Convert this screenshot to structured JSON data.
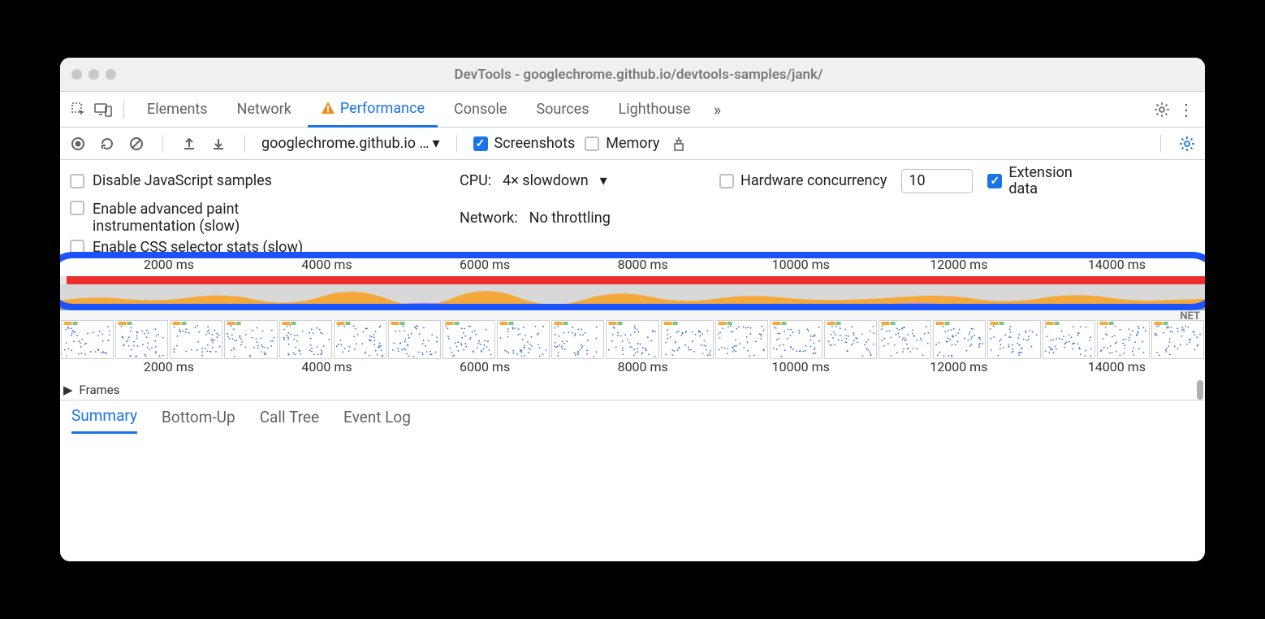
{
  "window": {
    "title": "DevTools - googlechrome.github.io/devtools-samples/jank/"
  },
  "tabs": {
    "elements": "Elements",
    "network": "Network",
    "performance": "Performance",
    "console": "Console",
    "sources": "Sources",
    "lighthouse": "Lighthouse"
  },
  "toolbar": {
    "url": "googlechrome.github.io …",
    "screenshots": "Screenshots",
    "memory": "Memory"
  },
  "settings": {
    "disable_js": "Disable JavaScript samples",
    "adv_paint_l1": "Enable advanced paint",
    "adv_paint_l2": "instrumentation (slow)",
    "css_stats": "Enable CSS selector stats (slow)",
    "cpu_label": "CPU:",
    "cpu_value": "4× slowdown",
    "net_label": "Network:",
    "net_value": "No throttling",
    "hw_conc": "Hardware concurrency",
    "hw_value": "10",
    "ext_l1": "Extension",
    "ext_l2": "data"
  },
  "ruler": {
    "ticks": [
      "2000 ms",
      "4000 ms",
      "6000 ms",
      "8000 ms",
      "10000 ms",
      "12000 ms",
      "14000 ms"
    ]
  },
  "net_label": "NET",
  "frames_label": "Frames",
  "details": {
    "summary": "Summary",
    "bottom_up": "Bottom-Up",
    "call_tree": "Call Tree",
    "event_log": "Event Log"
  },
  "colors": {
    "accent": "#1a73e8",
    "highlight": "#1a53ff",
    "red": "#eb2f2f",
    "orange": "#f4a93c",
    "purple": "#b68fd8",
    "green": "#5fc25f",
    "frames": "#e8e27d"
  },
  "thumb_count": 21,
  "tick_positions_pct": [
    9.5,
    23.3,
    37.1,
    50.9,
    64.7,
    78.5,
    92.3
  ]
}
